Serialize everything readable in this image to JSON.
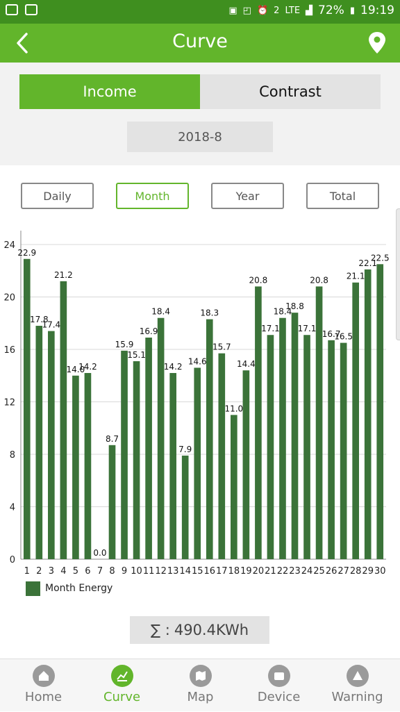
{
  "status_bar": {
    "battery": "72%",
    "time": "19:19",
    "network": "LTE",
    "sim_badge": "2"
  },
  "header": {
    "title": "Curve"
  },
  "tabs": {
    "income": "Income",
    "contrast": "Contrast",
    "selected": "Income"
  },
  "date": "2018-8",
  "periods": {
    "daily": "Daily",
    "month": "Month",
    "year": "Year",
    "total": "Total",
    "selected": "Month"
  },
  "chart_data": {
    "type": "bar",
    "categories": [
      "1",
      "2",
      "3",
      "4",
      "5",
      "6",
      "7",
      "8",
      "9",
      "10",
      "11",
      "12",
      "13",
      "14",
      "15",
      "16",
      "17",
      "18",
      "19",
      "20",
      "21",
      "22",
      "23",
      "24",
      "25",
      "26",
      "27",
      "28",
      "29",
      "30"
    ],
    "series": [
      {
        "name": "Month Energy",
        "color": "#3b7339",
        "values": [
          22.9,
          17.8,
          17.4,
          21.2,
          14.0,
          14.2,
          0.0,
          8.7,
          15.9,
          15.1,
          16.9,
          18.4,
          14.2,
          7.9,
          14.6,
          18.3,
          15.7,
          11.0,
          14.4,
          20.8,
          17.1,
          18.4,
          18.8,
          17.1,
          20.8,
          16.7,
          16.5,
          21.1,
          22.1,
          22.5
        ]
      }
    ],
    "ylim": [
      0,
      24
    ],
    "yticks": [
      0,
      4,
      8,
      12,
      16,
      20,
      24
    ],
    "grid": true,
    "legend": "bottom-left"
  },
  "total": {
    "symbol": "∑ :",
    "value": "490.4KWh"
  },
  "nav": {
    "home": "Home",
    "curve": "Curve",
    "map": "Map",
    "device": "Device",
    "warning": "Warning",
    "selected": "Curve"
  },
  "colors": {
    "accent": "#62b52b",
    "status_bar": "#3f8f1f",
    "bar": "#3b7339"
  }
}
